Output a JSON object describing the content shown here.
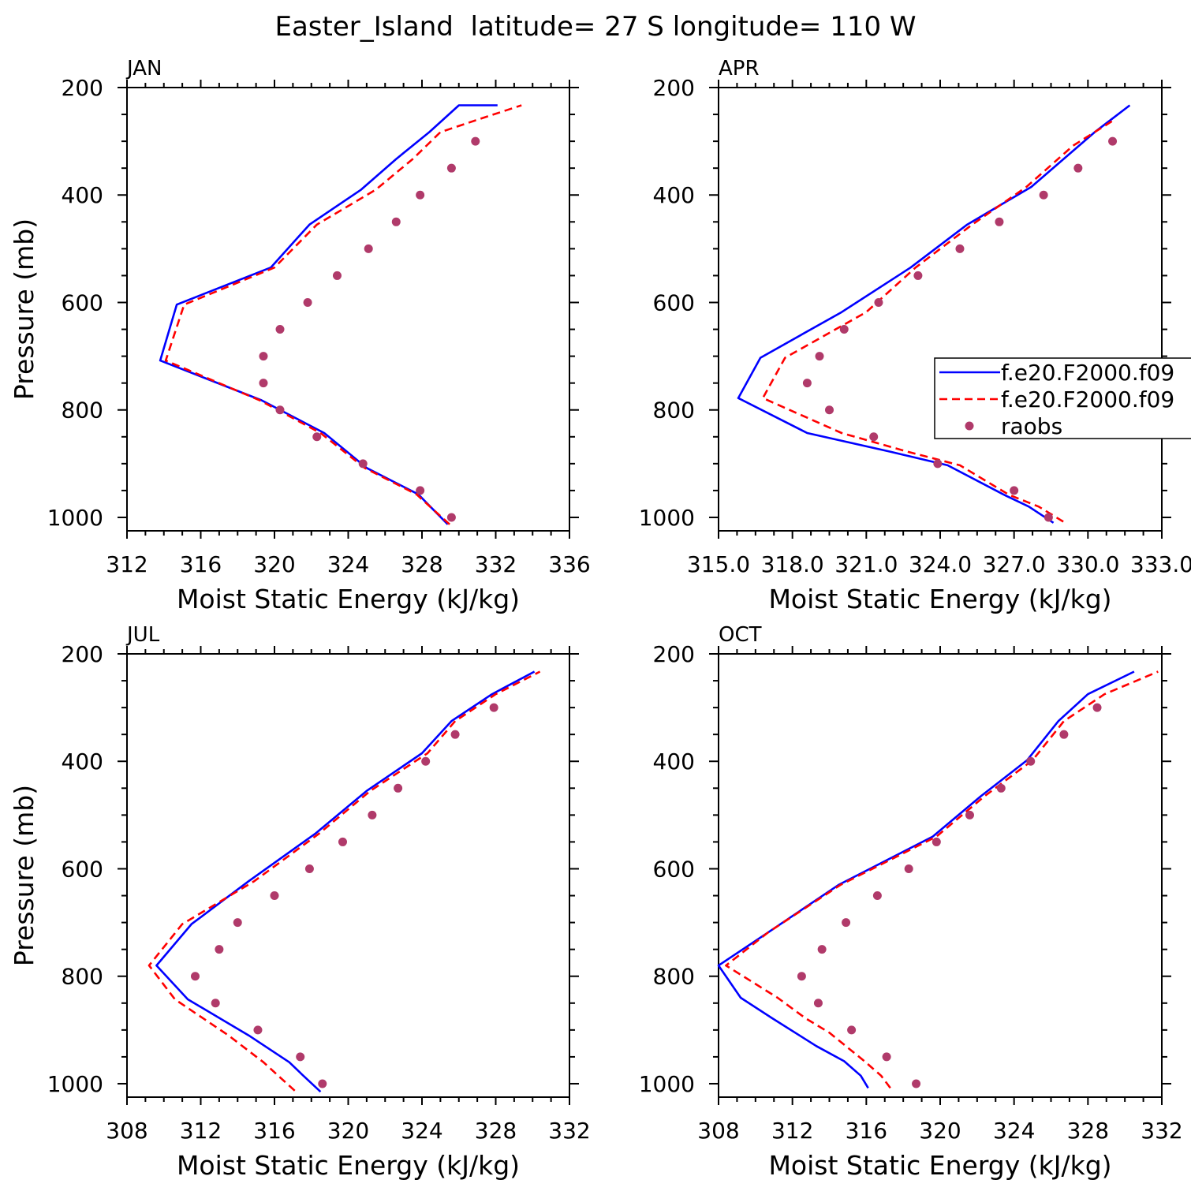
{
  "title": "Easter_Island  latitude= 27 S longitude= 110 W",
  "colors": {
    "blue": "#0000ff",
    "red": "#ff0000",
    "dots": "#b03a6a",
    "axis": "#000000"
  },
  "legend": {
    "location": "right side of APR panel",
    "entries": [
      {
        "label": "f.e20.F2000.f09",
        "style": "solid",
        "color": "#0000ff"
      },
      {
        "label": "f.e20.F2000.f09",
        "style": "dashed",
        "color": "#ff0000"
      },
      {
        "label": "raobs",
        "style": "dots",
        "color": "#b03a6a"
      }
    ]
  },
  "chart_data": [
    {
      "type": "line",
      "panel_label": "JAN",
      "xlabel": "Moist Static Energy (kJ/kg)",
      "ylabel": "Pressure (mb)",
      "xlim": [
        312,
        336
      ],
      "ylim": [
        1025,
        200
      ],
      "xticks": [
        "312",
        "316",
        "320",
        "324",
        "328",
        "332",
        "336"
      ],
      "yticks": [
        "200",
        "400",
        "600",
        "800",
        "1000"
      ],
      "series": [
        {
          "name": "f.e20.F2000.f09",
          "style": "solid",
          "x": [
            329.4,
            328.6,
            327.8,
            325.0,
            322.7,
            319.3,
            313.8,
            314.7,
            319.8,
            321.9,
            324.7,
            326.6,
            328.4,
            330.0,
            332.1
          ],
          "y": [
            1013,
            985,
            957,
            908,
            843,
            782,
            708,
            604,
            535,
            455,
            390,
            333,
            283,
            233,
            233
          ]
        },
        {
          "name": "f.e20.F2000.f09",
          "style": "dashed",
          "x": [
            329.5,
            328.6,
            327.7,
            324.9,
            322.5,
            319.2,
            314.1,
            315.1,
            320.0,
            322.3,
            325.5,
            327.5,
            329.0,
            331.0,
            333.4
          ],
          "y": [
            1013,
            985,
            957,
            908,
            843,
            782,
            708,
            604,
            535,
            455,
            390,
            333,
            283,
            260,
            233
          ]
        },
        {
          "name": "raobs",
          "style": "dots",
          "x": [
            329.6,
            327.9,
            324.8,
            322.3,
            320.3,
            319.4,
            319.4,
            320.3,
            321.8,
            323.4,
            325.1,
            326.6,
            327.9,
            329.6,
            330.9
          ],
          "y": [
            1000,
            950,
            900,
            850,
            800,
            750,
            700,
            650,
            600,
            550,
            500,
            450,
            400,
            350,
            300
          ]
        }
      ]
    },
    {
      "type": "line",
      "panel_label": "APR",
      "xlabel": "Moist Static Energy (kJ/kg)",
      "ylabel": "",
      "xlim": [
        315,
        333
      ],
      "ylim": [
        1025,
        200
      ],
      "xticks": [
        "315.0",
        "318.0",
        "321.0",
        "324.0",
        "327.0",
        "330.0",
        "333.0"
      ],
      "yticks": [
        "200",
        "400",
        "600",
        "800",
        "1000"
      ],
      "series": [
        {
          "name": "f.e20.F2000.f09",
          "style": "solid",
          "x": [
            328.6,
            327.6,
            326.6,
            324.3,
            322.0,
            318.6,
            315.8,
            316.7,
            320.0,
            322.8,
            325.1,
            327.7,
            330.3,
            331.7
          ],
          "y": [
            1010,
            980,
            958,
            903,
            878,
            843,
            778,
            703,
            618,
            535,
            455,
            385,
            282,
            233
          ]
        },
        {
          "name": "f.e20.F2000.f09",
          "style": "dashed",
          "x": [
            329.0,
            328.0,
            326.8,
            324.8,
            322.7,
            320.0,
            316.8,
            317.7,
            321.0,
            323.0,
            325.3,
            327.5,
            329.4,
            331.0
          ],
          "y": [
            1008,
            980,
            958,
            903,
            878,
            843,
            778,
            703,
            618,
            535,
            455,
            385,
            308,
            262
          ]
        },
        {
          "name": "raobs",
          "style": "dots",
          "x": [
            328.4,
            327.0,
            323.9,
            321.3,
            319.5,
            318.6,
            319.1,
            320.1,
            321.5,
            323.1,
            324.8,
            326.4,
            328.2,
            329.6,
            331.0
          ],
          "y": [
            1000,
            950,
            900,
            850,
            800,
            750,
            700,
            650,
            600,
            550,
            500,
            450,
            400,
            350,
            300
          ]
        }
      ]
    },
    {
      "type": "line",
      "panel_label": "JUL",
      "xlabel": "Moist Static Energy (kJ/kg)",
      "ylabel": "Pressure (mb)",
      "xlim": [
        308,
        332
      ],
      "ylim": [
        1025,
        200
      ],
      "xticks": [
        "308",
        "312",
        "316",
        "320",
        "324",
        "328",
        "332"
      ],
      "yticks": [
        "200",
        "400",
        "600",
        "800",
        "1000"
      ],
      "series": [
        {
          "name": "f.e20.F2000.f09",
          "style": "solid",
          "x": [
            318.5,
            317.5,
            316.8,
            314.6,
            311.3,
            309.6,
            311.5,
            314.6,
            318.2,
            321.0,
            324.0,
            325.6,
            327.8,
            330.1
          ],
          "y": [
            1015,
            983,
            960,
            910,
            843,
            780,
            703,
            623,
            535,
            455,
            385,
            325,
            275,
            233
          ]
        },
        {
          "name": "f.e20.F2000.f09",
          "style": "dashed",
          "x": [
            317.1,
            316.2,
            315.4,
            313.5,
            310.6,
            309.2,
            311.0,
            314.9,
            318.4,
            321.2,
            324.3,
            325.8,
            328.0,
            330.4
          ],
          "y": [
            1013,
            985,
            960,
            910,
            843,
            780,
            703,
            623,
            535,
            455,
            385,
            325,
            275,
            233
          ]
        },
        {
          "name": "raobs",
          "style": "dots",
          "x": [
            318.6,
            317.4,
            315.1,
            312.8,
            311.7,
            313.0,
            314.0,
            316.0,
            317.9,
            319.7,
            321.3,
            322.7,
            324.2,
            325.8,
            327.9
          ],
          "y": [
            1000,
            950,
            900,
            850,
            800,
            750,
            700,
            650,
            600,
            550,
            500,
            450,
            400,
            350,
            300
          ]
        }
      ]
    },
    {
      "type": "line",
      "panel_label": "OCT",
      "xlabel": "Moist Static Energy (kJ/kg)",
      "ylabel": "",
      "xlim": [
        308,
        332
      ],
      "ylim": [
        1025,
        200
      ],
      "xticks": [
        "308",
        "312",
        "316",
        "320",
        "324",
        "328",
        "332"
      ],
      "yticks": [
        "200",
        "400",
        "600",
        "800",
        "1000"
      ],
      "series": [
        {
          "name": "f.e20.F2000.f09",
          "style": "solid",
          "x": [
            316.1,
            315.7,
            314.8,
            313.3,
            310.9,
            309.2,
            308.0,
            310.7,
            314.5,
            319.6,
            322.2,
            324.7,
            326.4,
            328.0,
            330.5
          ],
          "y": [
            1008,
            985,
            958,
            930,
            878,
            840,
            780,
            718,
            630,
            540,
            465,
            398,
            325,
            275,
            233
          ]
        },
        {
          "name": "f.e20.F2000.f09",
          "style": "dashed",
          "x": [
            317.3,
            316.8,
            315.9,
            314.0,
            312.7,
            311.2,
            308.4,
            310.7,
            314.6,
            319.8,
            322.4,
            325.0,
            326.7,
            328.9,
            331.8
          ],
          "y": [
            1008,
            985,
            958,
            905,
            878,
            840,
            780,
            718,
            630,
            540,
            465,
            398,
            325,
            275,
            233
          ]
        },
        {
          "name": "raobs",
          "style": "dots",
          "x": [
            318.7,
            317.1,
            315.2,
            313.4,
            312.5,
            313.6,
            314.9,
            316.6,
            318.3,
            319.8,
            321.6,
            323.3,
            324.9,
            326.7,
            328.5
          ],
          "y": [
            1000,
            950,
            900,
            850,
            800,
            750,
            700,
            650,
            600,
            550,
            500,
            450,
            400,
            350,
            300
          ]
        }
      ]
    }
  ]
}
